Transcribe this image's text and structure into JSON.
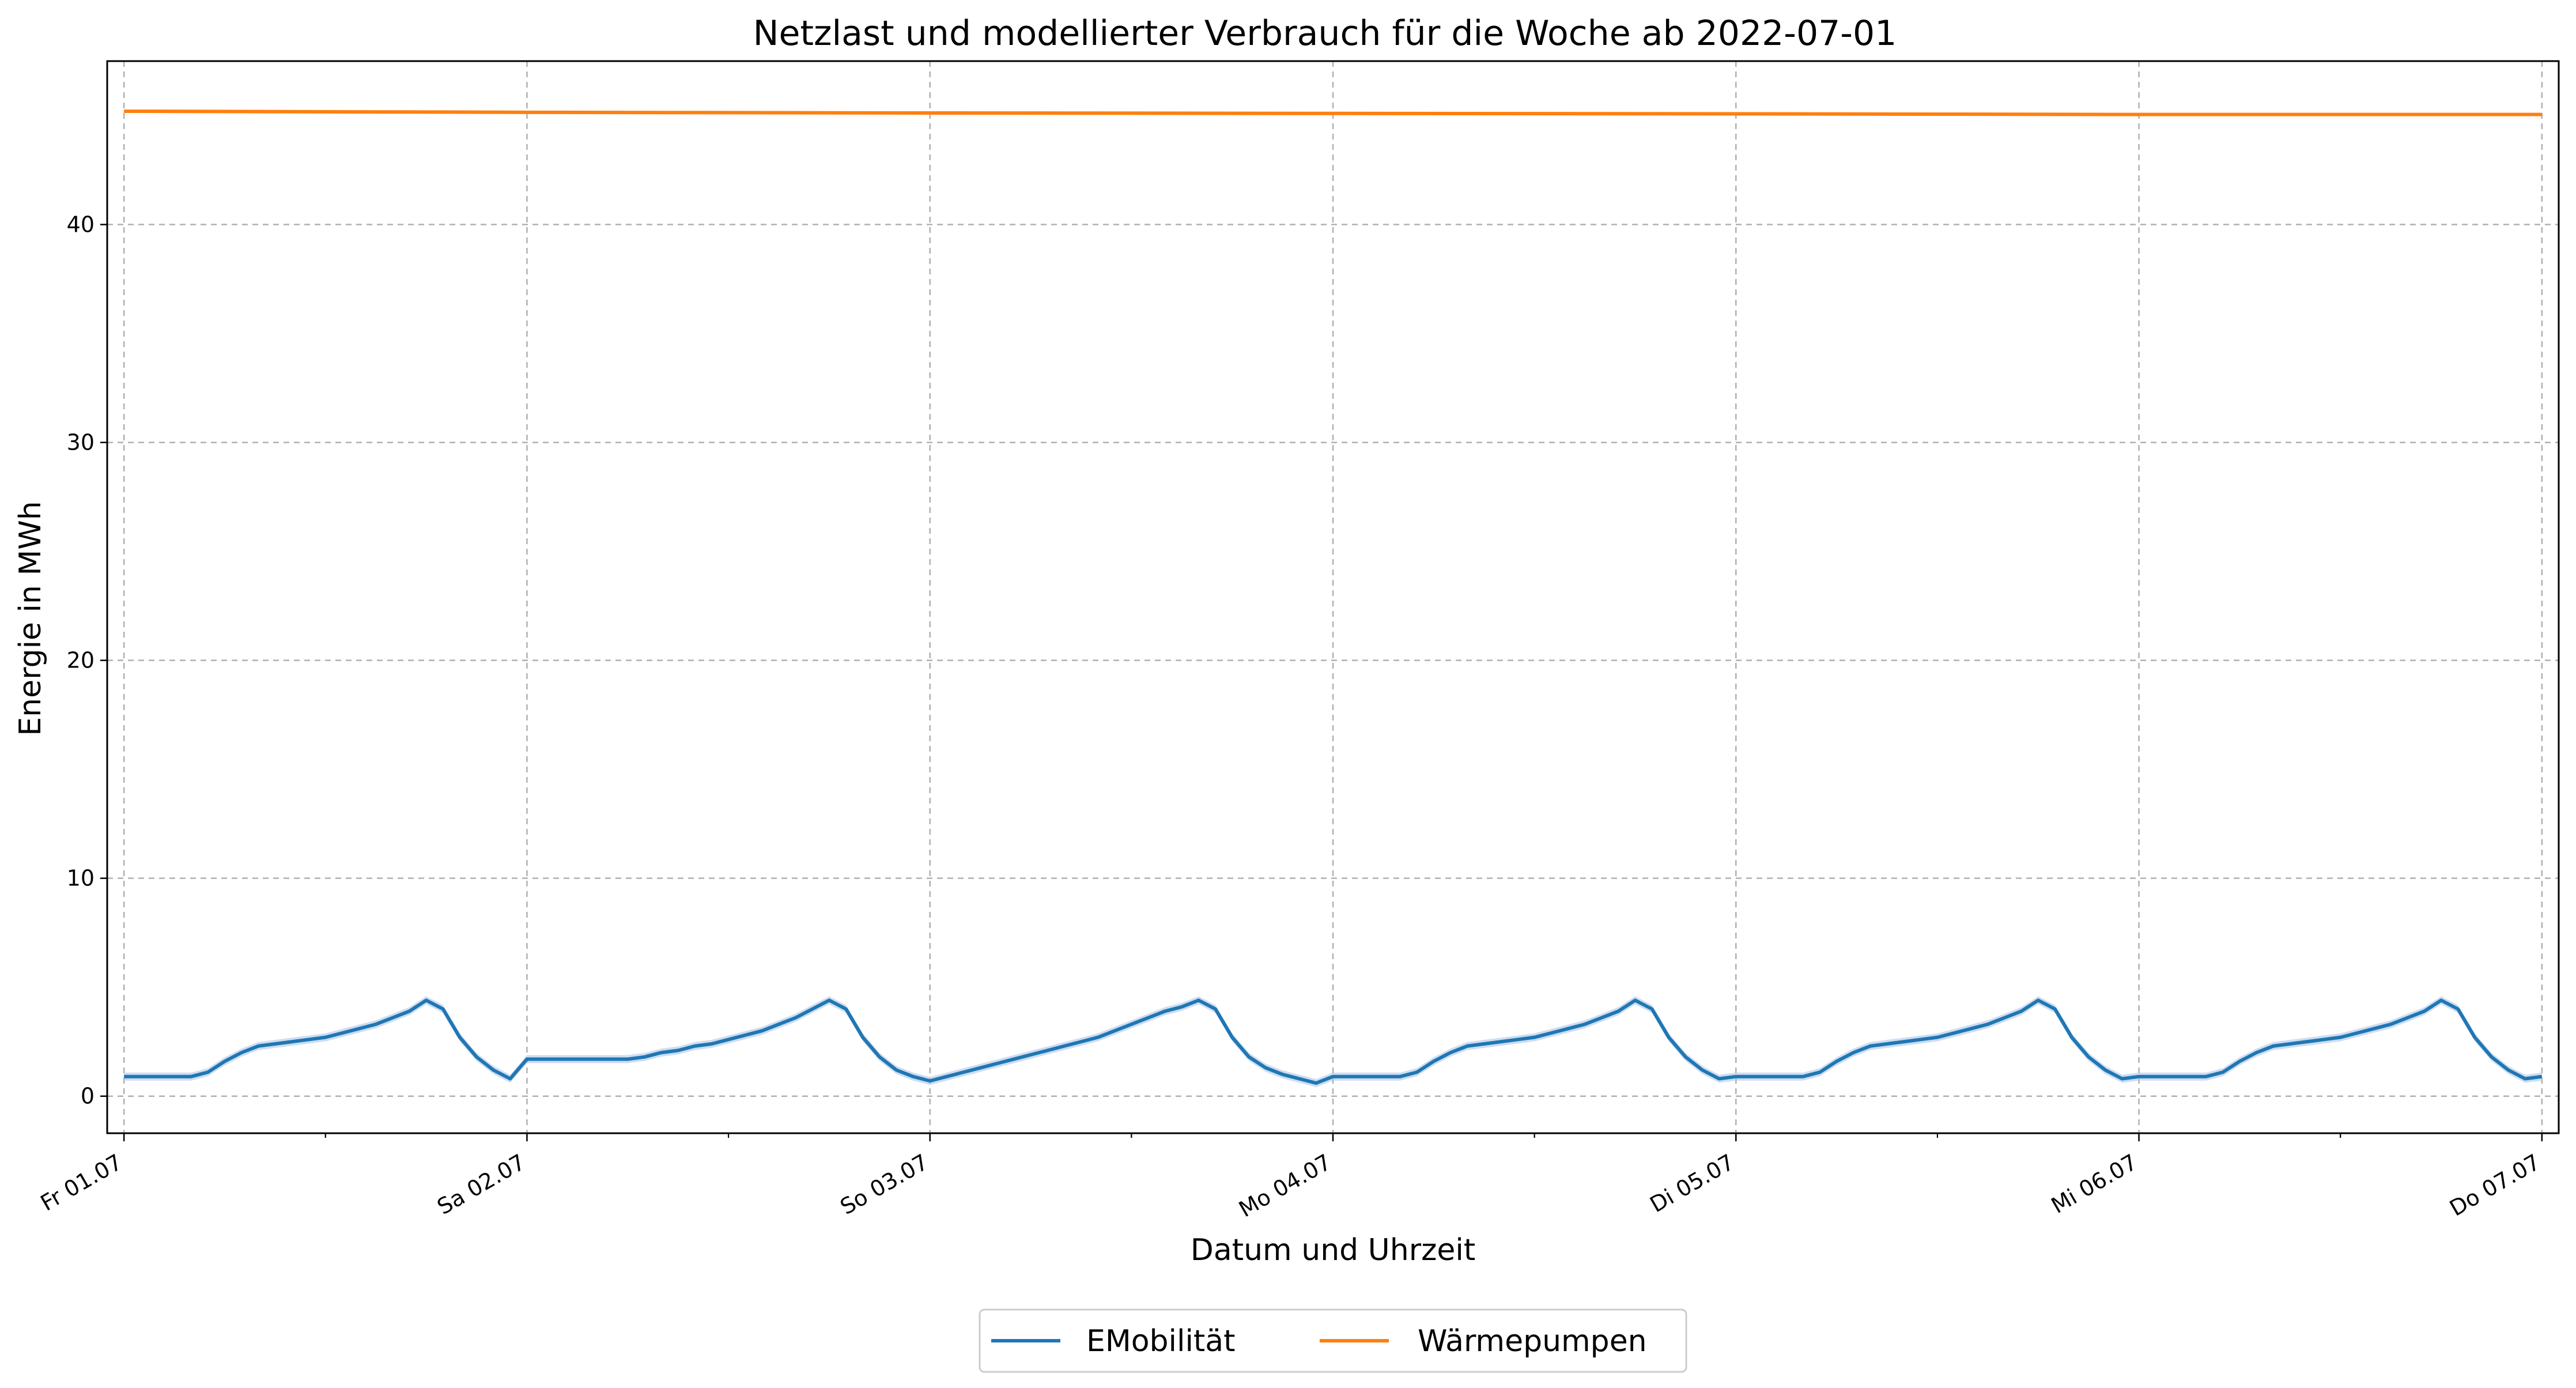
{
  "chart_data": {
    "type": "line",
    "title": "Netzlast und modellierter Verbrauch für die Woche ab 2022-07-01",
    "xlabel": "Datum und Uhrzeit",
    "ylabel": "Energie in MWh",
    "xlim": [
      "2022-06-30T23:00",
      "2022-07-07T01:00"
    ],
    "ylim": [
      -1.7,
      47.5
    ],
    "grid": true,
    "legend_position": "bottom-center",
    "x_tick_labels": [
      {
        "date": "2022-07-01T00:00",
        "label": "Fr 01.07"
      },
      {
        "date": "2022-07-02T00:00",
        "label": "Sa 02.07"
      },
      {
        "date": "2022-07-03T00:00",
        "label": "So 03.07"
      },
      {
        "date": "2022-07-04T00:00",
        "label": "Mo 04.07"
      },
      {
        "date": "2022-07-05T00:00",
        "label": "Di 05.07"
      },
      {
        "date": "2022-07-06T00:00",
        "label": "Mi 06.07"
      },
      {
        "date": "2022-07-07T00:00",
        "label": "Do 07.07"
      }
    ],
    "y_ticks": [
      0,
      10,
      20,
      30,
      40
    ],
    "series": [
      {
        "name": "EMobilität",
        "color": "#1f77b4",
        "band_color": "#aec7e8",
        "points": [
          [
            "2022-07-01T00:00",
            0.9
          ],
          [
            "2022-07-01T01:00",
            0.9
          ],
          [
            "2022-07-01T02:00",
            0.9
          ],
          [
            "2022-07-01T03:00",
            0.9
          ],
          [
            "2022-07-01T04:00",
            0.9
          ],
          [
            "2022-07-01T05:00",
            1.1
          ],
          [
            "2022-07-01T06:00",
            1.6
          ],
          [
            "2022-07-01T07:00",
            2.0
          ],
          [
            "2022-07-01T08:00",
            2.3
          ],
          [
            "2022-07-01T09:00",
            2.4
          ],
          [
            "2022-07-01T10:00",
            2.5
          ],
          [
            "2022-07-01T11:00",
            2.6
          ],
          [
            "2022-07-01T12:00",
            2.7
          ],
          [
            "2022-07-01T13:00",
            2.9
          ],
          [
            "2022-07-01T14:00",
            3.1
          ],
          [
            "2022-07-01T15:00",
            3.3
          ],
          [
            "2022-07-01T16:00",
            3.6
          ],
          [
            "2022-07-01T17:00",
            3.9
          ],
          [
            "2022-07-01T18:00",
            4.4
          ],
          [
            "2022-07-01T19:00",
            4.0
          ],
          [
            "2022-07-01T20:00",
            2.7
          ],
          [
            "2022-07-01T21:00",
            1.8
          ],
          [
            "2022-07-01T22:00",
            1.2
          ],
          [
            "2022-07-01T23:00",
            0.8
          ],
          [
            "2022-07-02T00:00",
            1.7
          ],
          [
            "2022-07-02T01:00",
            1.7
          ],
          [
            "2022-07-02T02:00",
            1.7
          ],
          [
            "2022-07-02T03:00",
            1.7
          ],
          [
            "2022-07-02T04:00",
            1.7
          ],
          [
            "2022-07-02T05:00",
            1.7
          ],
          [
            "2022-07-02T06:00",
            1.7
          ],
          [
            "2022-07-02T07:00",
            1.8
          ],
          [
            "2022-07-02T08:00",
            2.0
          ],
          [
            "2022-07-02T09:00",
            2.1
          ],
          [
            "2022-07-02T10:00",
            2.3
          ],
          [
            "2022-07-02T11:00",
            2.4
          ],
          [
            "2022-07-02T12:00",
            2.6
          ],
          [
            "2022-07-02T13:00",
            2.8
          ],
          [
            "2022-07-02T14:00",
            3.0
          ],
          [
            "2022-07-02T15:00",
            3.3
          ],
          [
            "2022-07-02T16:00",
            3.6
          ],
          [
            "2022-07-02T17:00",
            4.0
          ],
          [
            "2022-07-02T18:00",
            4.4
          ],
          [
            "2022-07-02T19:00",
            4.0
          ],
          [
            "2022-07-02T20:00",
            2.7
          ],
          [
            "2022-07-02T21:00",
            1.8
          ],
          [
            "2022-07-02T22:00",
            1.2
          ],
          [
            "2022-07-02T23:00",
            0.9
          ],
          [
            "2022-07-03T00:00",
            0.7
          ],
          [
            "2022-07-03T01:00",
            0.9
          ],
          [
            "2022-07-03T02:00",
            1.1
          ],
          [
            "2022-07-03T03:00",
            1.3
          ],
          [
            "2022-07-03T04:00",
            1.5
          ],
          [
            "2022-07-03T05:00",
            1.7
          ],
          [
            "2022-07-03T06:00",
            1.9
          ],
          [
            "2022-07-03T07:00",
            2.1
          ],
          [
            "2022-07-03T08:00",
            2.3
          ],
          [
            "2022-07-03T09:00",
            2.5
          ],
          [
            "2022-07-03T10:00",
            2.7
          ],
          [
            "2022-07-03T11:00",
            3.0
          ],
          [
            "2022-07-03T12:00",
            3.3
          ],
          [
            "2022-07-03T13:00",
            3.6
          ],
          [
            "2022-07-03T14:00",
            3.9
          ],
          [
            "2022-07-03T15:00",
            4.1
          ],
          [
            "2022-07-03T16:00",
            4.4
          ],
          [
            "2022-07-03T17:00",
            4.0
          ],
          [
            "2022-07-03T18:00",
            2.7
          ],
          [
            "2022-07-03T19:00",
            1.8
          ],
          [
            "2022-07-03T20:00",
            1.3
          ],
          [
            "2022-07-03T21:00",
            1.0
          ],
          [
            "2022-07-03T22:00",
            0.8
          ],
          [
            "2022-07-03T23:00",
            0.6
          ],
          [
            "2022-07-04T00:00",
            0.9
          ],
          [
            "2022-07-04T01:00",
            0.9
          ],
          [
            "2022-07-04T02:00",
            0.9
          ],
          [
            "2022-07-04T03:00",
            0.9
          ],
          [
            "2022-07-04T04:00",
            0.9
          ],
          [
            "2022-07-04T05:00",
            1.1
          ],
          [
            "2022-07-04T06:00",
            1.6
          ],
          [
            "2022-07-04T07:00",
            2.0
          ],
          [
            "2022-07-04T08:00",
            2.3
          ],
          [
            "2022-07-04T09:00",
            2.4
          ],
          [
            "2022-07-04T10:00",
            2.5
          ],
          [
            "2022-07-04T11:00",
            2.6
          ],
          [
            "2022-07-04T12:00",
            2.7
          ],
          [
            "2022-07-04T13:00",
            2.9
          ],
          [
            "2022-07-04T14:00",
            3.1
          ],
          [
            "2022-07-04T15:00",
            3.3
          ],
          [
            "2022-07-04T16:00",
            3.6
          ],
          [
            "2022-07-04T17:00",
            3.9
          ],
          [
            "2022-07-04T18:00",
            4.4
          ],
          [
            "2022-07-04T19:00",
            4.0
          ],
          [
            "2022-07-04T20:00",
            2.7
          ],
          [
            "2022-07-04T21:00",
            1.8
          ],
          [
            "2022-07-04T22:00",
            1.2
          ],
          [
            "2022-07-04T23:00",
            0.8
          ],
          [
            "2022-07-05T00:00",
            0.9
          ],
          [
            "2022-07-05T01:00",
            0.9
          ],
          [
            "2022-07-05T02:00",
            0.9
          ],
          [
            "2022-07-05T03:00",
            0.9
          ],
          [
            "2022-07-05T04:00",
            0.9
          ],
          [
            "2022-07-05T05:00",
            1.1
          ],
          [
            "2022-07-05T06:00",
            1.6
          ],
          [
            "2022-07-05T07:00",
            2.0
          ],
          [
            "2022-07-05T08:00",
            2.3
          ],
          [
            "2022-07-05T09:00",
            2.4
          ],
          [
            "2022-07-05T10:00",
            2.5
          ],
          [
            "2022-07-05T11:00",
            2.6
          ],
          [
            "2022-07-05T12:00",
            2.7
          ],
          [
            "2022-07-05T13:00",
            2.9
          ],
          [
            "2022-07-05T14:00",
            3.1
          ],
          [
            "2022-07-05T15:00",
            3.3
          ],
          [
            "2022-07-05T16:00",
            3.6
          ],
          [
            "2022-07-05T17:00",
            3.9
          ],
          [
            "2022-07-05T18:00",
            4.4
          ],
          [
            "2022-07-05T19:00",
            4.0
          ],
          [
            "2022-07-05T20:00",
            2.7
          ],
          [
            "2022-07-05T21:00",
            1.8
          ],
          [
            "2022-07-05T22:00",
            1.2
          ],
          [
            "2022-07-05T23:00",
            0.8
          ],
          [
            "2022-07-06T00:00",
            0.9
          ],
          [
            "2022-07-06T01:00",
            0.9
          ],
          [
            "2022-07-06T02:00",
            0.9
          ],
          [
            "2022-07-06T03:00",
            0.9
          ],
          [
            "2022-07-06T04:00",
            0.9
          ],
          [
            "2022-07-06T05:00",
            1.1
          ],
          [
            "2022-07-06T06:00",
            1.6
          ],
          [
            "2022-07-06T07:00",
            2.0
          ],
          [
            "2022-07-06T08:00",
            2.3
          ],
          [
            "2022-07-06T09:00",
            2.4
          ],
          [
            "2022-07-06T10:00",
            2.5
          ],
          [
            "2022-07-06T11:00",
            2.6
          ],
          [
            "2022-07-06T12:00",
            2.7
          ],
          [
            "2022-07-06T13:00",
            2.9
          ],
          [
            "2022-07-06T14:00",
            3.1
          ],
          [
            "2022-07-06T15:00",
            3.3
          ],
          [
            "2022-07-06T16:00",
            3.6
          ],
          [
            "2022-07-06T17:00",
            3.9
          ],
          [
            "2022-07-06T18:00",
            4.4
          ],
          [
            "2022-07-06T19:00",
            4.0
          ],
          [
            "2022-07-06T20:00",
            2.7
          ],
          [
            "2022-07-06T21:00",
            1.8
          ],
          [
            "2022-07-06T22:00",
            1.2
          ],
          [
            "2022-07-06T23:00",
            0.8
          ],
          [
            "2022-07-07T00:00",
            0.9
          ]
        ]
      },
      {
        "name": "Wärmepumpen",
        "color": "#ff7f0e",
        "points": [
          [
            "2022-07-01T00:00",
            45.2
          ],
          [
            "2022-07-02T00:00",
            45.15
          ],
          [
            "2022-07-03T00:00",
            45.12
          ],
          [
            "2022-07-04T00:00",
            45.1
          ],
          [
            "2022-07-05T00:00",
            45.08
          ],
          [
            "2022-07-06T00:00",
            45.05
          ],
          [
            "2022-07-07T00:00",
            45.05
          ]
        ]
      }
    ]
  }
}
